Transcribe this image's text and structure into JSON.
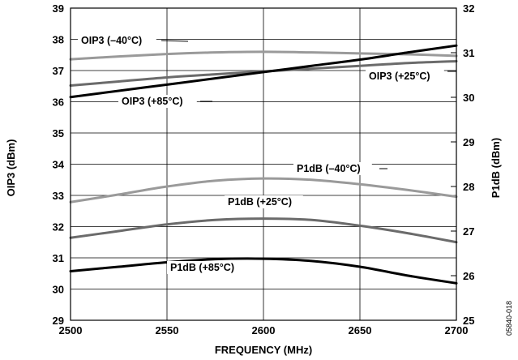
{
  "figure_id": "05840-018",
  "chart_data": {
    "type": "line",
    "xlabel": "FREQUENCY (MHz)",
    "ylabel": "OIP3 (dBm)",
    "y2label": "P1dB (dBm)",
    "xlim": [
      2500,
      2700
    ],
    "ylim": [
      29,
      39
    ],
    "y2lim": [
      25,
      32
    ],
    "x_ticks": [
      2500,
      2550,
      2600,
      2650,
      2700
    ],
    "y_ticks": [
      29,
      30,
      31,
      32,
      33,
      34,
      35,
      36,
      37,
      38,
      39
    ],
    "y2_ticks": [
      25,
      26,
      27,
      28,
      29,
      30,
      31,
      32
    ],
    "grid": true,
    "x": [
      2500,
      2525,
      2550,
      2575,
      2600,
      2625,
      2650,
      2675,
      2700
    ],
    "series": [
      {
        "name": "OIP3 (–40°C)",
        "axis": "left",
        "color": "#9a9a9a",
        "values": [
          37.36,
          37.45,
          37.53,
          37.58,
          37.6,
          37.58,
          37.55,
          37.52,
          37.47
        ]
      },
      {
        "name": "OIP3 (+25°C)",
        "axis": "left",
        "color": "#6b6b6b",
        "values": [
          36.52,
          36.65,
          36.78,
          36.88,
          36.97,
          37.06,
          37.15,
          37.24,
          37.3
        ]
      },
      {
        "name": "OIP3 (+85°C)",
        "axis": "left",
        "color": "#000000",
        "values": [
          36.15,
          36.35,
          36.55,
          36.75,
          36.95,
          37.15,
          37.35,
          37.58,
          37.8
        ]
      },
      {
        "name": "P1dB (–40°C)",
        "axis": "right",
        "color": "#9a9a9a",
        "values": [
          27.65,
          27.82,
          28.0,
          28.13,
          28.18,
          28.15,
          28.05,
          27.92,
          27.77
        ]
      },
      {
        "name": "P1dB (+25°C)",
        "axis": "right",
        "color": "#6b6b6b",
        "values": [
          26.85,
          27.0,
          27.15,
          27.25,
          27.28,
          27.25,
          27.12,
          26.95,
          26.75
        ]
      },
      {
        "name": "P1dB (+85°C)",
        "axis": "right",
        "color": "#000000",
        "values": [
          26.1,
          26.2,
          26.3,
          26.37,
          26.38,
          26.33,
          26.2,
          26.0,
          25.83
        ]
      }
    ]
  }
}
